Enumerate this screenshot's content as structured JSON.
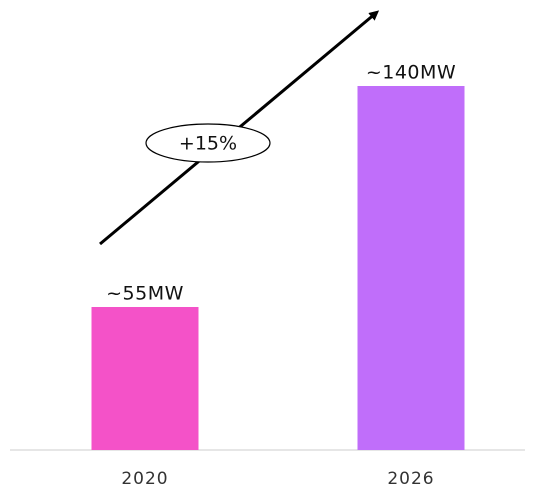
{
  "chart_data": {
    "type": "bar",
    "categories": [
      "2020",
      "2026"
    ],
    "values": [
      55,
      140
    ],
    "value_labels": [
      "~55MW",
      "~140MW"
    ],
    "colors": [
      "#f452c8",
      "#c06efa"
    ],
    "annotation": "+15%"
  }
}
